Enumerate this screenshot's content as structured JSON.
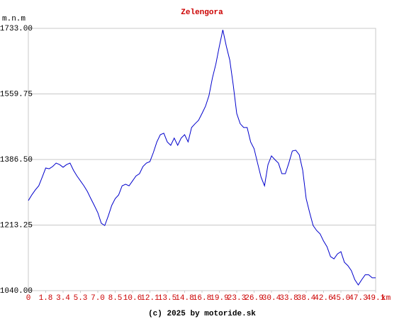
{
  "chart_data": {
    "type": "line",
    "title": "Zelengora",
    "y_label": "m.n.m",
    "x_label": "km",
    "footer": "(c) 2025 by motoride.sk",
    "color": "#0000cc",
    "title_color": "#cc0000",
    "xtick_color": "#cc0000",
    "grid": true,
    "ylim": [
      1040,
      1733
    ],
    "yticks": [
      {
        "value": 1040,
        "label": "1040.00"
      },
      {
        "value": 1213.25,
        "label": "1213.25"
      },
      {
        "value": 1386.5,
        "label": "1386.50"
      },
      {
        "value": 1559.75,
        "label": "1559.75"
      },
      {
        "value": 1733,
        "label": "1733.00"
      }
    ],
    "xlim": [
      0,
      100
    ],
    "xticks": [
      {
        "value": 0,
        "label": "0"
      },
      {
        "value": 5,
        "label": "1.8"
      },
      {
        "value": 10,
        "label": "3.4"
      },
      {
        "value": 15,
        "label": "5.3"
      },
      {
        "value": 20,
        "label": "7.0"
      },
      {
        "value": 25,
        "label": "8.5"
      },
      {
        "value": 30,
        "label": "10.6"
      },
      {
        "value": 35,
        "label": "12.1"
      },
      {
        "value": 40,
        "label": "13.5"
      },
      {
        "value": 45,
        "label": "14.8"
      },
      {
        "value": 50,
        "label": "16.8"
      },
      {
        "value": 55,
        "label": "19.9"
      },
      {
        "value": 60,
        "label": "23.3"
      },
      {
        "value": 65,
        "label": "26.9"
      },
      {
        "value": 70,
        "label": "30.4"
      },
      {
        "value": 75,
        "label": "33.8"
      },
      {
        "value": 80,
        "label": "38.4"
      },
      {
        "value": 85,
        "label": "42.6"
      },
      {
        "value": 90,
        "label": "45.0"
      },
      {
        "value": 95,
        "label": "47.3"
      },
      {
        "value": 100,
        "label": "49.1"
      }
    ],
    "values": [
      1278,
      1293,
      1306,
      1317,
      1340,
      1364,
      1362,
      1368,
      1377,
      1373,
      1366,
      1373,
      1377,
      1358,
      1343,
      1330,
      1317,
      1302,
      1283,
      1265,
      1246,
      1218,
      1212,
      1237,
      1265,
      1283,
      1293,
      1317,
      1321,
      1317,
      1330,
      1343,
      1349,
      1368,
      1377,
      1381,
      1405,
      1433,
      1452,
      1456,
      1433,
      1424,
      1443,
      1424,
      1443,
      1452,
      1433,
      1471,
      1481,
      1490,
      1508,
      1527,
      1555,
      1602,
      1639,
      1686,
      1729,
      1686,
      1649,
      1583,
      1508,
      1481,
      1471,
      1471,
      1433,
      1415,
      1377,
      1340,
      1317,
      1373,
      1396,
      1386,
      1377,
      1349,
      1349,
      1377,
      1409,
      1411,
      1399,
      1358,
      1283,
      1246,
      1212,
      1199,
      1190,
      1171,
      1156,
      1130,
      1124,
      1137,
      1143,
      1115,
      1106,
      1093,
      1069,
      1055,
      1069,
      1082,
      1082,
      1074,
      1074
    ]
  }
}
